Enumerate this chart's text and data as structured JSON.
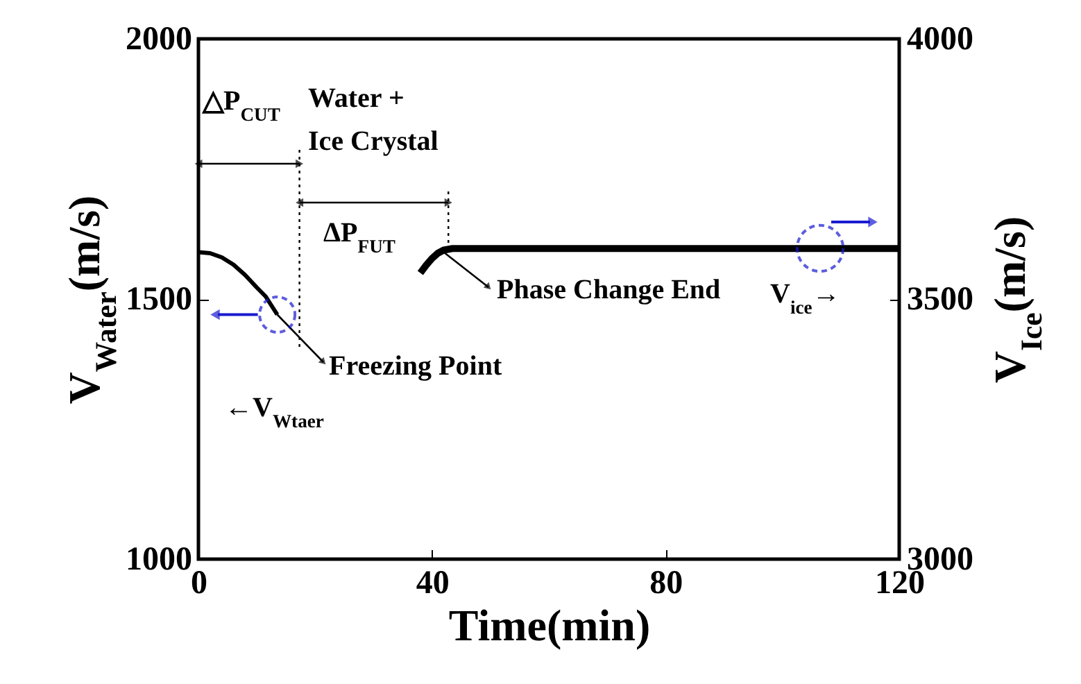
{
  "chart_data": {
    "type": "line",
    "xlabel": "Time(min)",
    "ylabel": "V$_{Water}$(m/s)",
    "y2label": "V$_{Ice}$(m/s)",
    "xlim": [
      0,
      120
    ],
    "xticks": [
      0,
      40,
      80,
      120
    ],
    "ylim": [
      1000,
      2000
    ],
    "yticks": [
      1000,
      1500,
      2000
    ],
    "y2lim": [
      3000,
      4000
    ],
    "y2ticks": [
      3000,
      3500,
      4000
    ],
    "series": [
      {
        "color": "#000000",
        "x": [
          0,
          2,
          4,
          6,
          8,
          10,
          11.5,
          13.5
        ],
        "values": [
          1590,
          1588,
          1580,
          1566,
          1546,
          1522,
          1505,
          1470
        ]
      },
      {
        "color": "#000000",
        "axis": "y2",
        "x": [
          38,
          39,
          40,
          41,
          42,
          43.5,
          50,
          60,
          70,
          80,
          90,
          100,
          110,
          120
        ],
        "values": [
          3550,
          3565,
          3578,
          3588,
          3594,
          3597,
          3597,
          3597,
          3597,
          3597,
          3597,
          3597,
          3597,
          3597
        ]
      }
    ],
    "ref_lines": [
      {
        "axis": "x",
        "value": 17.3,
        "line_style": "dotted",
        "color": "#000000"
      },
      {
        "axis": "x",
        "value": 42.8,
        "line_style": "dotted",
        "color": "#000000"
      }
    ],
    "annotations": [
      "△P$_{CUT}$",
      "Water +",
      "Ice Crystal",
      "ΔP$_{FUT}$",
      {
        "text": "Freezing Point",
        "x": 13.5,
        "y": 1470
      },
      {
        "text": "Phase Change End",
        "x": 42,
        "y": 1590
      },
      "←V$_{Wtaer}$",
      "V$_{ice}$→"
    ]
  }
}
